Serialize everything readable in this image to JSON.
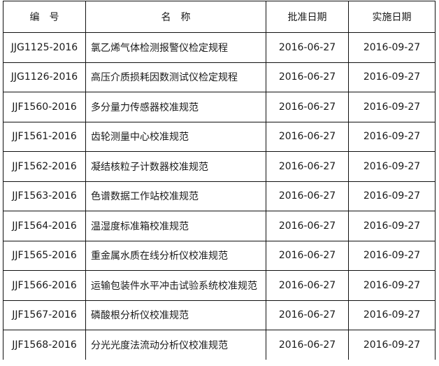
{
  "table": {
    "headers": [
      "编　号",
      "名　称",
      "批准日期",
      "实施日期"
    ],
    "rows": [
      [
        "JJG1125-2016",
        "氯乙烯气体检测报警仪检定规程",
        "2016-06-27",
        "2016-09-27"
      ],
      [
        "JJG1126-2016",
        "高压介质损耗因数测试仪检定规程",
        "2016-06-27",
        "2016-09-27"
      ],
      [
        "JJF1560-2016",
        "多分量力传感器校准规范",
        "2016-06-27",
        "2016-09-27"
      ],
      [
        "JJF1561-2016",
        "齿轮测量中心校准规范",
        "2016-06-27",
        "2016-09-27"
      ],
      [
        "JJF1562-2016",
        "凝结核粒子计数器校准规范",
        "2016-06-27",
        "2016-09-27"
      ],
      [
        "JJF1563-2016",
        "色谱数据工作站校准规范",
        "2016-06-27",
        "2016-09-27"
      ],
      [
        "JJF1564-2016",
        "温湿度标准箱校准规范",
        "2016-06-27",
        "2016-09-27"
      ],
      [
        "JJF1565-2016",
        "重金属水质在线分析仪校准规范",
        "2016-06-27",
        "2016-09-27"
      ],
      [
        "JJF1566-2016",
        "运输包装件水平冲击试验系统校准规范",
        "2016-06-27",
        "2016-09-27"
      ],
      [
        "JJF1567-2016",
        "磷酸根分析仪校准规范",
        "2016-06-27",
        "2016-09-27"
      ],
      [
        "JJF1568-2016",
        "分光光度法流动分析仪校准规范",
        "2016-06-27",
        "2016-09-27"
      ]
    ]
  }
}
